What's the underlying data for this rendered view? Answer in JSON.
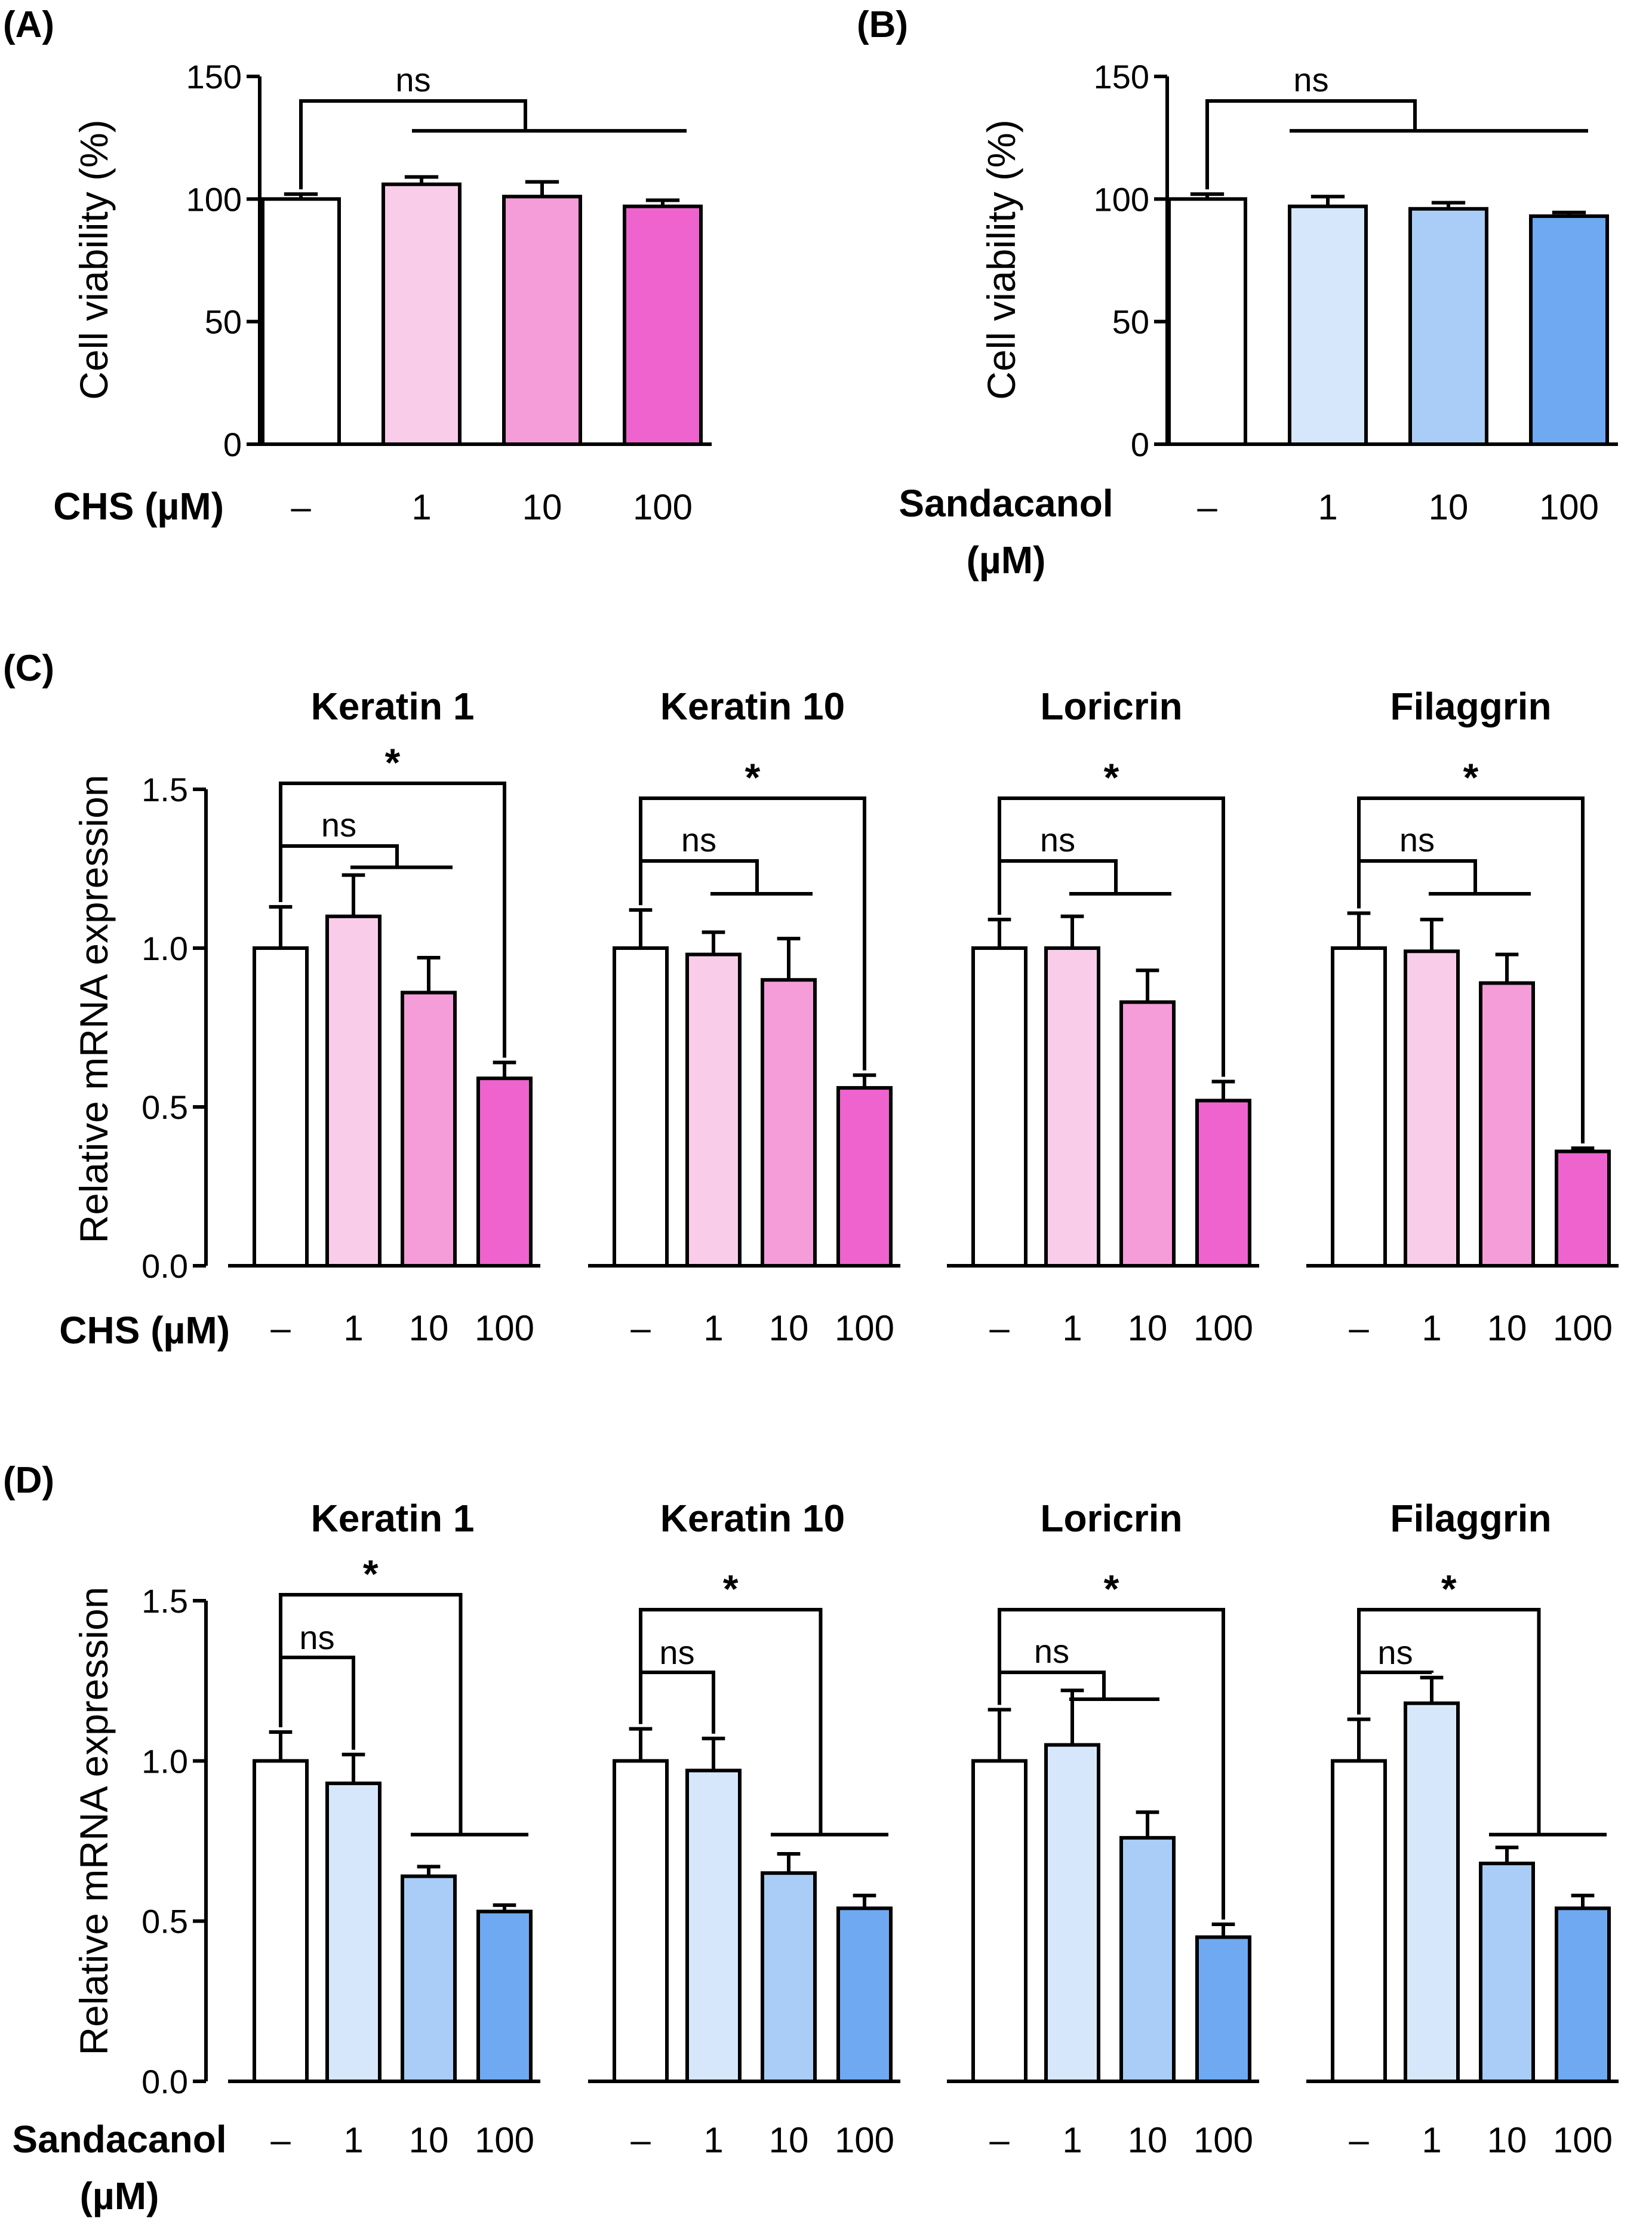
{
  "panels": [
    {
      "label": "(A)",
      "ylabel": "Cell viability (%)",
      "yticks": [
        "0",
        "50",
        "100",
        "150"
      ],
      "xname_lines": [
        "CHS (µM)"
      ],
      "significance": [
        "ns"
      ]
    },
    {
      "label": "(B)",
      "ylabel": "Cell viability (%)",
      "yticks": [
        "0",
        "50",
        "100",
        "150"
      ],
      "xname_lines": [
        "Sandacanol",
        "(µM)"
      ],
      "significance": [
        "ns"
      ]
    },
    {
      "label": "(C)",
      "ylabel": "Relative mRNA expression",
      "yticks": [
        "0.0",
        "0.5",
        "1.0",
        "1.5"
      ],
      "xname_lines": [
        "CHS (µM)"
      ],
      "significance": [
        "ns",
        "*",
        "ns",
        "*",
        "ns",
        "*",
        "ns",
        "*"
      ]
    },
    {
      "label": "(D)",
      "ylabel": "Relative mRNA expression",
      "yticks": [
        "0.0",
        "0.5",
        "1.0",
        "1.5"
      ],
      "xname_lines": [
        "Sandacanol",
        "(µM)"
      ],
      "significance": [
        "ns",
        "*",
        "ns",
        "*",
        "ns",
        "*",
        "ns",
        "*"
      ]
    }
  ],
  "chart_data": [
    {
      "panel": "A",
      "type": "bar",
      "ylabel": "Cell viability (%)",
      "ylim": [
        0,
        150
      ],
      "xlabel": "CHS (µM)",
      "categories": [
        "–",
        "1",
        "10",
        "100"
      ],
      "values": [
        100,
        106,
        101,
        97
      ],
      "errors": [
        2,
        3,
        6,
        2.5
      ],
      "colors": [
        "#ffffff",
        "#f9cde9",
        "#f59dd8",
        "#ef63cf"
      ],
      "annotations": [
        "ns"
      ]
    },
    {
      "panel": "B",
      "type": "bar",
      "ylabel": "Cell viability (%)",
      "ylim": [
        0,
        150
      ],
      "xlabel": "Sandacanol (µM)",
      "categories": [
        "–",
        "1",
        "10",
        "100"
      ],
      "values": [
        100,
        97,
        96,
        93
      ],
      "errors": [
        2,
        4,
        2.5,
        1.5
      ],
      "colors": [
        "#ffffff",
        "#d7e7fb",
        "#a9cdf6",
        "#6fa9f2"
      ],
      "annotations": [
        "ns"
      ]
    },
    {
      "panel": "C",
      "type": "bar",
      "ylabel": "Relative mRNA expression",
      "ylim": [
        0,
        1.5
      ],
      "xlabel": "CHS (µM)",
      "categories": [
        "–",
        "1",
        "10",
        "100"
      ],
      "colors": [
        "#ffffff",
        "#f9cde9",
        "#f59dd8",
        "#ef63cf"
      ],
      "groups": [
        {
          "title": "Keratin 1",
          "values": [
            1.0,
            1.1,
            0.86,
            0.59
          ],
          "errors": [
            0.13,
            0.13,
            0.11,
            0.05
          ],
          "annotations": [
            "ns",
            "*"
          ]
        },
        {
          "title": "Keratin 10",
          "values": [
            1.0,
            0.98,
            0.9,
            0.56
          ],
          "errors": [
            0.12,
            0.07,
            0.13,
            0.04
          ],
          "annotations": [
            "ns",
            "*"
          ]
        },
        {
          "title": "Loricrin",
          "values": [
            1.0,
            1.0,
            0.83,
            0.52
          ],
          "errors": [
            0.09,
            0.1,
            0.1,
            0.06
          ],
          "annotations": [
            "ns",
            "*"
          ]
        },
        {
          "title": "Filaggrin",
          "values": [
            1.0,
            0.99,
            0.89,
            0.36
          ],
          "errors": [
            0.11,
            0.1,
            0.09,
            0.01
          ],
          "annotations": [
            "ns",
            "*"
          ]
        }
      ]
    },
    {
      "panel": "D",
      "type": "bar",
      "ylabel": "Relative mRNA expression",
      "ylim": [
        0,
        1.5
      ],
      "xlabel": "Sandacanol (µM)",
      "categories": [
        "–",
        "1",
        "10",
        "100"
      ],
      "colors": [
        "#ffffff",
        "#d7e7fb",
        "#a9cdf6",
        "#6fa9f2"
      ],
      "groups": [
        {
          "title": "Keratin 1",
          "values": [
            1.0,
            0.93,
            0.64,
            0.53
          ],
          "errors": [
            0.09,
            0.09,
            0.03,
            0.02
          ],
          "annotations": [
            "ns",
            "*"
          ]
        },
        {
          "title": "Keratin 10",
          "values": [
            1.0,
            0.97,
            0.65,
            0.54
          ],
          "errors": [
            0.1,
            0.1,
            0.06,
            0.04
          ],
          "annotations": [
            "ns",
            "*"
          ]
        },
        {
          "title": "Loricrin",
          "values": [
            1.0,
            1.05,
            0.76,
            0.45
          ],
          "errors": [
            0.16,
            0.17,
            0.08,
            0.04
          ],
          "annotations": [
            "ns",
            "*"
          ]
        },
        {
          "title": "Filaggrin",
          "values": [
            1.0,
            1.18,
            0.68,
            0.54
          ],
          "errors": [
            0.13,
            0.08,
            0.05,
            0.04
          ],
          "annotations": [
            "ns",
            "*"
          ]
        }
      ]
    }
  ]
}
